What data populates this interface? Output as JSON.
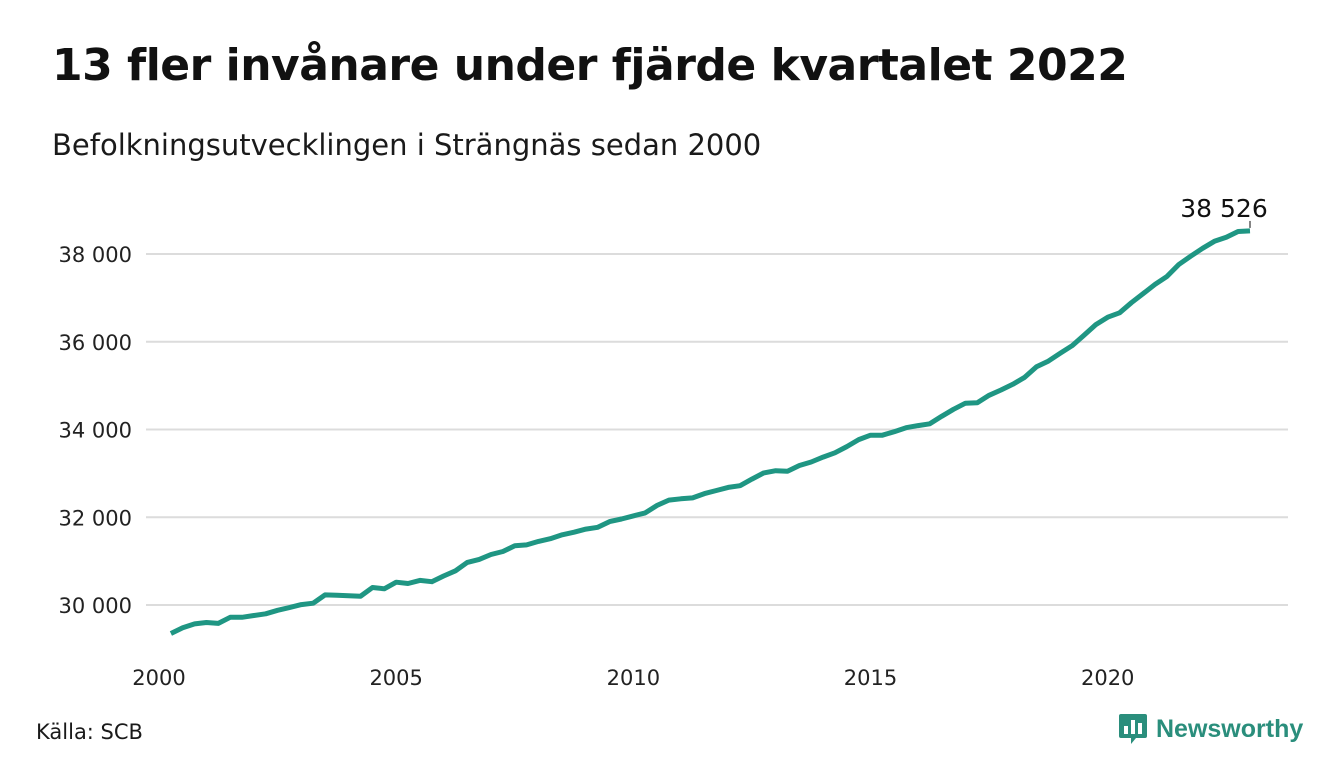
{
  "title": "13 fler invånare under fjärde kvartalet 2022",
  "subtitle": "Befolkningsutvecklingen i Strängnäs sedan 2000",
  "source": "Källa: SCB",
  "brand": {
    "name": "Newsworthy",
    "icon": "newsworthy-logo-icon",
    "color": "#2a8e7c"
  },
  "chart_data": {
    "type": "line",
    "title": "13 fler invånare under fjärde kvartalet 2022",
    "subtitle": "Befolkningsutvecklingen i Strängnäs sedan 2000",
    "xlabel": "",
    "ylabel": "",
    "xlim": [
      2000,
      2023.5
    ],
    "ylim": [
      29000,
      39400
    ],
    "x_ticks": [
      2000,
      2005,
      2010,
      2015,
      2020
    ],
    "x_tick_labels": [
      "2000",
      "2005",
      "2010",
      "2015",
      "2020"
    ],
    "y_ticks": [
      30000,
      32000,
      34000,
      36000,
      38000
    ],
    "y_tick_labels": [
      "30 000",
      "32 000",
      "34 000",
      "36 000",
      "38 000"
    ],
    "grid": "horizontal",
    "line_color": "#1f9683",
    "last_value_label": "38 526",
    "series": [
      {
        "x": [
          2000.25,
          2000.5,
          2000.75,
          2001.0,
          2001.25,
          2001.5,
          2001.75,
          2002.0,
          2002.25,
          2002.5,
          2002.75,
          2003.0,
          2003.25,
          2003.5,
          2003.75,
          2004.0,
          2004.25,
          2004.5,
          2004.75,
          2005.0,
          2005.25,
          2005.5,
          2005.75,
          2006.0,
          2006.25,
          2006.5,
          2006.75,
          2007.0,
          2007.25,
          2007.5,
          2007.75,
          2008.0,
          2008.25,
          2008.5,
          2008.75,
          2009.0,
          2009.25,
          2009.5,
          2009.75,
          2010.0,
          2010.25,
          2010.5,
          2010.75,
          2011.0,
          2011.25,
          2011.5,
          2011.75,
          2012.0,
          2012.25,
          2012.5,
          2012.75,
          2013.0,
          2013.25,
          2013.5,
          2013.75,
          2014.0,
          2014.25,
          2014.5,
          2014.75,
          2015.0,
          2015.25,
          2015.5,
          2015.75,
          2016.0,
          2016.25,
          2016.5,
          2016.75,
          2017.0,
          2017.25,
          2017.5,
          2017.75,
          2018.0,
          2018.25,
          2018.5,
          2018.75,
          2019.0,
          2019.25,
          2019.5,
          2019.75,
          2020.0,
          2020.25,
          2020.5,
          2020.75,
          2021.0,
          2021.25,
          2021.5,
          2021.75,
          2022.0,
          2022.25,
          2022.5,
          2022.75,
          2023.0
        ],
        "values": [
          29350,
          29480,
          29570,
          29600,
          29580,
          29720,
          29720,
          29760,
          29800,
          29880,
          29940,
          30010,
          30040,
          30230,
          30220,
          30210,
          30200,
          30400,
          30370,
          30520,
          30490,
          30560,
          30530,
          30660,
          30780,
          30970,
          31040,
          31150,
          31220,
          31350,
          31370,
          31450,
          31510,
          31600,
          31660,
          31730,
          31770,
          31900,
          31960,
          32030,
          32100,
          32270,
          32390,
          32420,
          32440,
          32540,
          32610,
          32680,
          32720,
          32870,
          33010,
          33060,
          33050,
          33180,
          33260,
          33370,
          33470,
          33610,
          33770,
          33870,
          33870,
          33950,
          34040,
          34090,
          34130,
          34300,
          34460,
          34600,
          34610,
          34780,
          34900,
          35030,
          35190,
          35430,
          35560,
          35740,
          35910,
          36150,
          36390,
          36560,
          36660,
          36890,
          37100,
          37310,
          37490,
          37760,
          37950,
          38130,
          38290,
          38380,
          38513,
          38526
        ]
      }
    ]
  }
}
